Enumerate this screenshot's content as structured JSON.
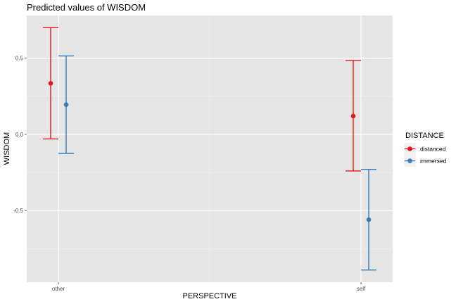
{
  "chart_data": {
    "type": "scatter",
    "title": "Predicted values of WISDOM",
    "xlabel": "PERSPECTIVE",
    "ylabel": "WISDOM",
    "categories": [
      "other",
      "self"
    ],
    "ylim": [
      -0.97,
      0.78
    ],
    "yticks": [
      -0.5,
      0.0,
      0.5
    ],
    "ytick_labels": [
      "-0.5",
      "0.0",
      "0.5"
    ],
    "grid": true,
    "legend": {
      "title": "DISTANCE",
      "position": "right"
    },
    "series": [
      {
        "name": "distanced",
        "color": "#e41a1c",
        "values": [
          0.335,
          0.12
        ],
        "lower": [
          -0.03,
          -0.24
        ],
        "upper": [
          0.7,
          0.485
        ]
      },
      {
        "name": "immersed",
        "color": "#377eb8",
        "values": [
          0.195,
          -0.56
        ],
        "lower": [
          -0.125,
          -0.89
        ],
        "upper": [
          0.515,
          -0.23
        ]
      }
    ]
  }
}
